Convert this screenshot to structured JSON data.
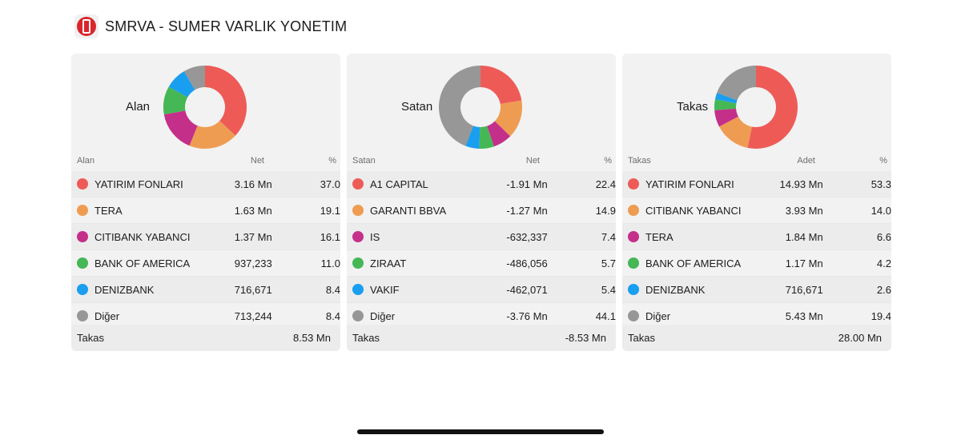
{
  "header": {
    "title": "SMRVA - SUMER VARLIK YONETIM",
    "logo_icon": "is-yatirim-logo-icon"
  },
  "colors": [
    "#ee5b57",
    "#ef9c53",
    "#c42f8a",
    "#45b755",
    "#1a9ef0",
    "#979797"
  ],
  "panels": [
    {
      "label": "Alan",
      "columns": {
        "name": "Alan",
        "value": "Net",
        "pct": "%"
      },
      "rows": [
        {
          "name": "YATIRIM FONLARI",
          "value": "3.16 Mn",
          "pct": "37.0"
        },
        {
          "name": "TERA",
          "value": "1.63 Mn",
          "pct": "19.1"
        },
        {
          "name": "CITIBANK YABANCI",
          "value": "1.37 Mn",
          "pct": "16.1"
        },
        {
          "name": "BANK OF AMERICA",
          "value": "937,233",
          "pct": "11.0"
        },
        {
          "name": "DENIZBANK",
          "value": "716,671",
          "pct": "8.4"
        },
        {
          "name": "Diğer",
          "value": "713,244",
          "pct": "8.4"
        }
      ],
      "footer": {
        "label": "Takas",
        "value": "8.53 Mn"
      }
    },
    {
      "label": "Satan",
      "columns": {
        "name": "Satan",
        "value": "Net",
        "pct": "%"
      },
      "rows": [
        {
          "name": "A1 CAPITAL",
          "value": "-1.91 Mn",
          "pct": "22.4"
        },
        {
          "name": "GARANTI BBVA",
          "value": "-1.27 Mn",
          "pct": "14.9"
        },
        {
          "name": "IS",
          "value": "-632,337",
          "pct": "7.4"
        },
        {
          "name": "ZIRAAT",
          "value": "-486,056",
          "pct": "5.7"
        },
        {
          "name": "VAKIF",
          "value": "-462,071",
          "pct": "5.4"
        },
        {
          "name": "Diğer",
          "value": "-3.76 Mn",
          "pct": "44.1"
        }
      ],
      "footer": {
        "label": "Takas",
        "value": "-8.53 Mn"
      }
    },
    {
      "label": "Takas",
      "columns": {
        "name": "Takas",
        "value": "Adet",
        "pct": "%"
      },
      "rows": [
        {
          "name": "YATIRIM FONLARI",
          "value": "14.93 Mn",
          "pct": "53.3"
        },
        {
          "name": "CITIBANK YABANCI",
          "value": "3.93 Mn",
          "pct": "14.0"
        },
        {
          "name": "TERA",
          "value": "1.84 Mn",
          "pct": "6.6"
        },
        {
          "name": "BANK OF AMERICA",
          "value": "1.17 Mn",
          "pct": "4.2"
        },
        {
          "name": "DENIZBANK",
          "value": "716,671",
          "pct": "2.6"
        },
        {
          "name": "Diğer",
          "value": "5.43 Mn",
          "pct": "19.4"
        }
      ],
      "footer": {
        "label": "Takas",
        "value": "28.00 Mn"
      }
    }
  ]
}
